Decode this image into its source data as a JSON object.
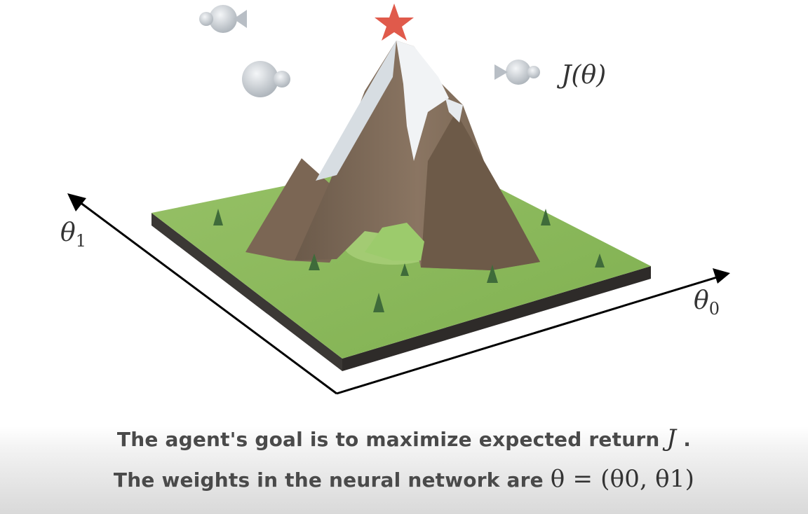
{
  "labels": {
    "objective": "J(θ)",
    "theta1": {
      "base": "θ",
      "sub": "1"
    },
    "theta0": {
      "base": "θ",
      "sub": "0"
    }
  },
  "captions": [
    {
      "text": "The agent's goal is to maximize expected return ",
      "math": "J",
      "suffix": " ."
    },
    {
      "text": "The weights in the neural network are ",
      "math": "θ = (θ0, θ1)"
    }
  ],
  "colors": {
    "star": "#e05a4b",
    "grass": "#8fbc5e",
    "mountain": "#7d6a57",
    "snow": "#eef2f5",
    "cloud": "#c9ced4"
  }
}
